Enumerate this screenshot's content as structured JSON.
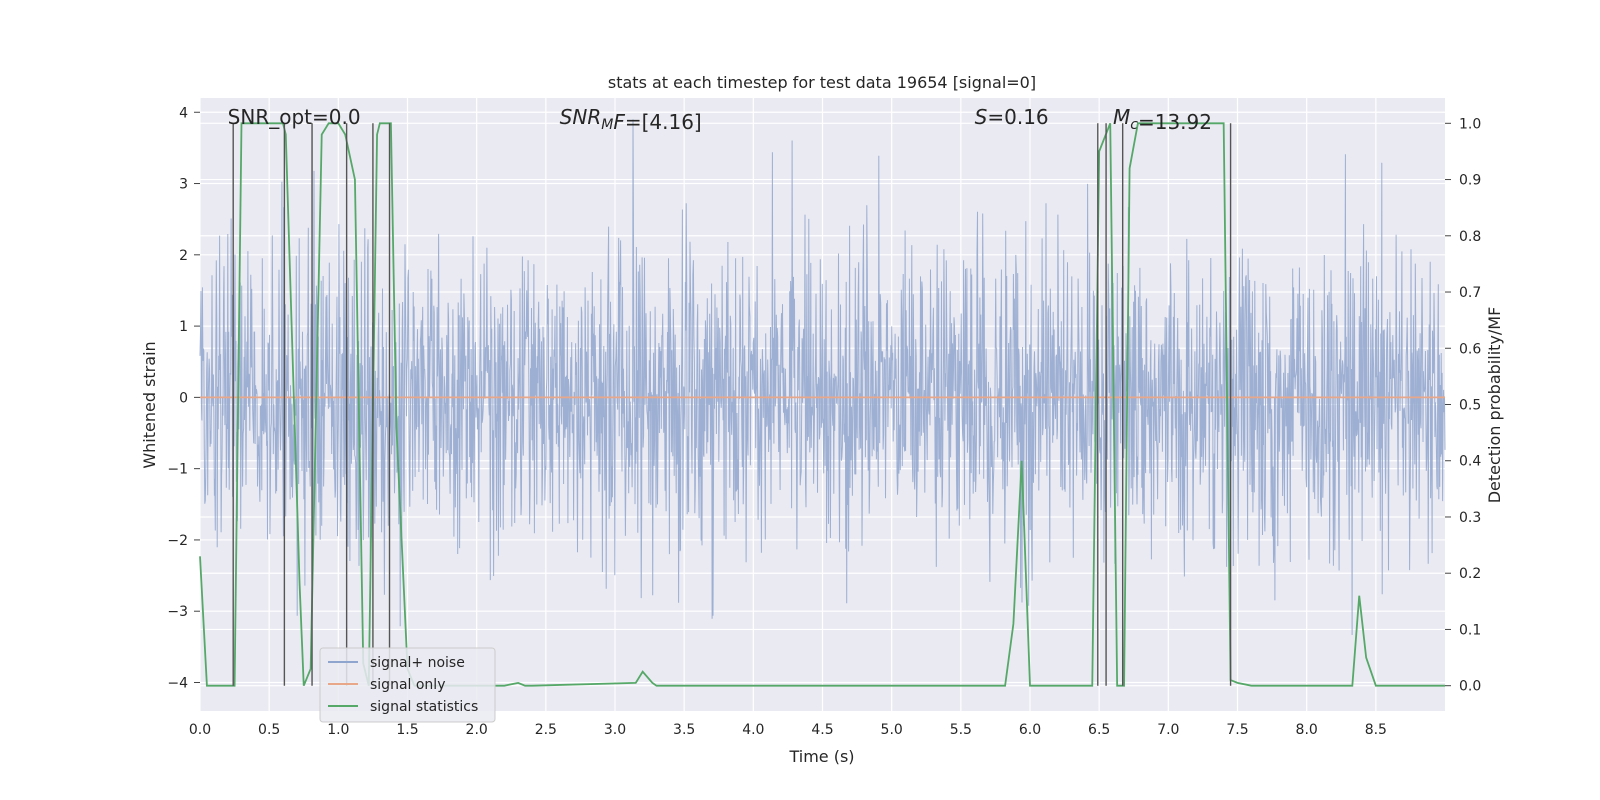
{
  "chart_data": {
    "type": "line",
    "title": "stats at each timestep for test data 19654 [signal=0]",
    "xlabel": "Time (s)",
    "ylabel": "Whitened strain",
    "y2label": "Detection probability/MF",
    "xlim": [
      0.0,
      9.0
    ],
    "ylim": [
      -4.4,
      4.2
    ],
    "y2lim": [
      -0.045,
      1.045
    ],
    "xticks": [
      0.0,
      0.5,
      1.0,
      1.5,
      2.0,
      2.5,
      3.0,
      3.5,
      4.0,
      4.5,
      5.0,
      5.5,
      6.0,
      6.5,
      7.0,
      7.5,
      8.0,
      8.5
    ],
    "xtick_labels": [
      "0.0",
      "0.5",
      "1.0",
      "1.5",
      "2.0",
      "2.5",
      "3.0",
      "3.5",
      "4.0",
      "4.5",
      "5.0",
      "5.5",
      "6.0",
      "6.5",
      "7.0",
      "7.5",
      "8.0",
      "8.5"
    ],
    "yticks": [
      -4,
      -3,
      -2,
      -1,
      0,
      1,
      2,
      3,
      4
    ],
    "ytick_labels": [
      "−4",
      "−3",
      "−2",
      "−1",
      "0",
      "1",
      "2",
      "3",
      "4"
    ],
    "y2ticks": [
      0.0,
      0.1,
      0.2,
      0.3,
      0.4,
      0.5,
      0.6,
      0.7,
      0.8,
      0.9,
      1.0
    ],
    "y2tick_labels": [
      "0.0",
      "0.1",
      "0.2",
      "0.3",
      "0.4",
      "0.5",
      "0.6",
      "0.7",
      "0.8",
      "0.9",
      "1.0"
    ],
    "grid": true,
    "legend_position": "lower-left",
    "annotations": [
      {
        "name": "snr-opt",
        "parts": [
          {
            "text": "SNR_opt=0.0",
            "italic": false
          }
        ],
        "at_x": 0.2
      },
      {
        "name": "snr-mf",
        "parts": [
          {
            "text": "SNR",
            "italic": true
          },
          {
            "text": "M",
            "italic": true,
            "sub": true
          },
          {
            "text": "F",
            "italic": true
          },
          {
            "text": "=[4.16]",
            "italic": false
          }
        ],
        "at_x": 2.6
      },
      {
        "name": "s-value",
        "parts": [
          {
            "text": "S",
            "italic": true
          },
          {
            "text": "=0.16",
            "italic": false
          }
        ],
        "at_x": 5.6
      },
      {
        "name": "mc-value",
        "parts": [
          {
            "text": "M",
            "italic": true
          },
          {
            "text": "c",
            "italic": true,
            "sub": true
          },
          {
            "text": "=13.92",
            "italic": false
          }
        ],
        "at_x": 6.6
      }
    ],
    "series": [
      {
        "name": "signal+ noise",
        "color": "#8fa5cd",
        "style": "noise",
        "description": "whitened noise trace, range roughly -3.9 to 3.9"
      },
      {
        "name": "signal only",
        "color": "#e9a78a",
        "axis": "left",
        "x": [
          0.0,
          9.0
        ],
        "y": [
          0.0,
          0.0
        ]
      },
      {
        "name": "signal statistics",
        "color": "#55a868",
        "axis": "right",
        "x": [
          0.0,
          0.05,
          0.25,
          0.3,
          0.35,
          0.5,
          0.6,
          0.62,
          0.72,
          0.75,
          0.8,
          0.88,
          0.93,
          1.0,
          1.05,
          1.12,
          1.18,
          1.22,
          1.28,
          1.3,
          1.38,
          1.42,
          1.5,
          1.55,
          1.6,
          2.2,
          2.3,
          2.35,
          2.4,
          3.15,
          3.2,
          3.27,
          3.3,
          5.82,
          5.88,
          5.94,
          6.0,
          6.05,
          6.45,
          6.5,
          6.58,
          6.63,
          6.68,
          6.72,
          6.78,
          6.85,
          7.35,
          7.4,
          7.45,
          7.5,
          7.6,
          8.33,
          8.38,
          8.43,
          8.5,
          9.0
        ],
        "y": [
          0.23,
          0.0,
          0.0,
          1.0,
          1.0,
          1.0,
          1.0,
          0.98,
          0.18,
          0.0,
          0.03,
          0.98,
          1.0,
          1.0,
          0.98,
          0.9,
          0.04,
          0.0,
          0.98,
          1.0,
          1.0,
          0.46,
          0.03,
          0.0,
          0.0,
          0.0,
          0.005,
          0.0,
          0.0,
          0.005,
          0.025,
          0.005,
          0.0,
          0.0,
          0.11,
          0.4,
          0.0,
          0.0,
          0.0,
          0.95,
          1.0,
          0.0,
          0.0,
          0.92,
          1.0,
          1.0,
          1.0,
          1.0,
          0.01,
          0.005,
          0.0,
          0.0,
          0.16,
          0.05,
          0.0,
          0.0
        ]
      }
    ],
    "vertical_markers_x": [
      0.24,
      0.61,
      0.81,
      1.06,
      1.25,
      1.37,
      6.49,
      6.55,
      6.67,
      7.45
    ]
  }
}
